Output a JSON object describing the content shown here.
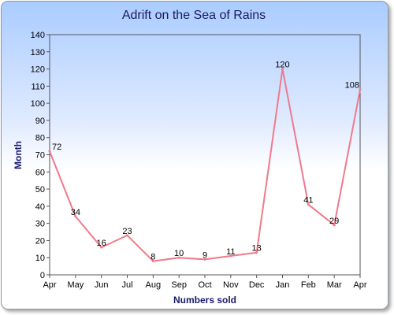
{
  "chart_data": {
    "type": "line",
    "title": "Adrift on the Sea of Rains",
    "xlabel": "Numbers sold",
    "ylabel": "Month",
    "categories": [
      "Apr",
      "May",
      "Jun",
      "Jul",
      "Aug",
      "Sep",
      "Oct",
      "Nov",
      "Dec",
      "Jan",
      "Feb",
      "Mar",
      "Apr"
    ],
    "values": [
      72,
      34,
      16,
      23,
      8,
      10,
      9,
      11,
      13,
      120,
      41,
      29,
      108
    ],
    "ylim": [
      0,
      140
    ],
    "ytick_step": 10,
    "grid": false,
    "legend": "none",
    "line_color": "#f07a8a",
    "title_color": "#1a1a5e",
    "axis_title_color": "#1a1a6e"
  }
}
